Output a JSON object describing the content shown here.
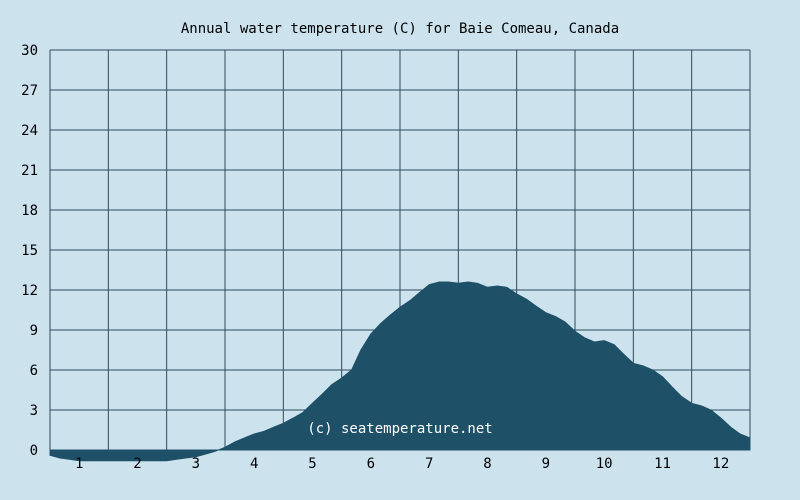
{
  "chart_data": {
    "type": "area",
    "title": "Annual water temperature (C) for Baie Comeau, Canada",
    "xlabel": "",
    "ylabel": "",
    "watermark": "(c) seatemperature.net",
    "x_ticks": [
      "1",
      "2",
      "3",
      "4",
      "5",
      "6",
      "7",
      "8",
      "9",
      "10",
      "11",
      "12"
    ],
    "y_ticks": [
      "0",
      "3",
      "6",
      "9",
      "12",
      "15",
      "18",
      "21",
      "24",
      "27",
      "30"
    ],
    "xlim": [
      0,
      12
    ],
    "ylim": [
      0,
      30
    ],
    "grid": true,
    "colors": {
      "background": "#cce3ee",
      "grid": "#2e4a5c",
      "fill": "#1e5068",
      "text": "#000000",
      "watermark": "#ffffff"
    },
    "series": [
      {
        "x": [
          0.0,
          0.17,
          0.33,
          0.5,
          0.67,
          0.83,
          1.0,
          1.17,
          1.33,
          1.5,
          1.67,
          1.83,
          2.0,
          2.17,
          2.33,
          2.5,
          2.67,
          2.83,
          3.0,
          3.17,
          3.33,
          3.5,
          3.67,
          3.83,
          4.0,
          4.17,
          4.33,
          4.5,
          4.67,
          4.83,
          5.0,
          5.17,
          5.33,
          5.5,
          5.67,
          5.83,
          6.0,
          6.17,
          6.33,
          6.5,
          6.67,
          6.83,
          7.0,
          7.17,
          7.33,
          7.5,
          7.67,
          7.83,
          8.0,
          8.17,
          8.33,
          8.5,
          8.67,
          8.83,
          9.0,
          9.17,
          9.33,
          9.5,
          9.67,
          9.83,
          10.0,
          10.17,
          10.33,
          10.5,
          10.67,
          10.83,
          11.0,
          11.17,
          11.33,
          11.5,
          11.67,
          11.83,
          12.0
        ],
        "y": [
          -0.4,
          -0.6,
          -0.7,
          -0.8,
          -0.8,
          -0.8,
          -0.8,
          -0.8,
          -0.8,
          -0.8,
          -0.8,
          -0.8,
          -0.8,
          -0.7,
          -0.6,
          -0.5,
          -0.3,
          -0.1,
          0.2,
          0.6,
          0.9,
          1.2,
          1.4,
          1.7,
          2.0,
          2.4,
          2.8,
          3.5,
          4.2,
          4.9,
          5.4,
          6.0,
          7.5,
          8.7,
          9.5,
          10.1,
          10.7,
          11.2,
          11.8,
          12.4,
          12.6,
          12.6,
          12.5,
          12.6,
          12.5,
          12.2,
          12.3,
          12.2,
          11.7,
          11.3,
          10.8,
          10.3,
          10.0,
          9.6,
          8.9,
          8.4,
          8.1,
          8.2,
          7.9,
          7.2,
          6.5,
          6.3,
          6.0,
          5.5,
          4.7,
          4.0,
          3.5,
          3.3,
          3.0,
          2.4,
          1.7,
          1.2,
          0.9
        ]
      }
    ]
  }
}
